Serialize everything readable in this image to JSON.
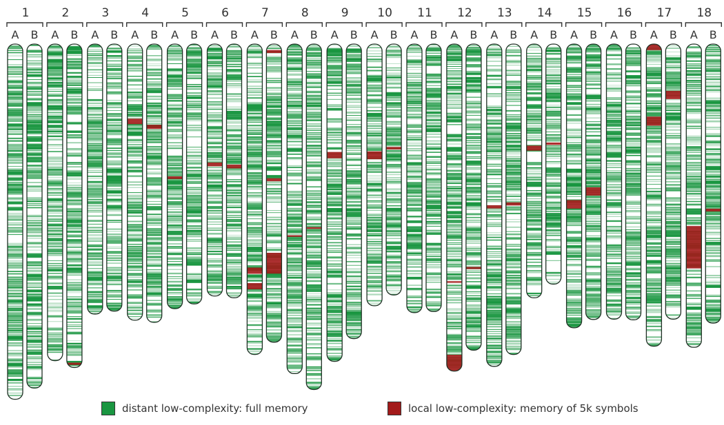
{
  "pairs": [
    {
      "number": "1",
      "labels": [
        "A",
        "B"
      ],
      "lengths": [
        0.984,
        0.953
      ]
    },
    {
      "number": "2",
      "labels": [
        "A",
        "B"
      ],
      "lengths": [
        0.877,
        0.896
      ]
    },
    {
      "number": "3",
      "labels": [
        "A",
        "B"
      ],
      "lengths": [
        0.748,
        0.74
      ]
    },
    {
      "number": "4",
      "labels": [
        "A",
        "B"
      ],
      "lengths": [
        0.765,
        0.771
      ]
    },
    {
      "number": "5",
      "labels": [
        "A",
        "B"
      ],
      "lengths": [
        0.733,
        0.72
      ]
    },
    {
      "number": "6",
      "labels": [
        "A",
        "B"
      ],
      "lengths": [
        0.698,
        0.703
      ]
    },
    {
      "number": "7",
      "labels": [
        "A",
        "B"
      ],
      "lengths": [
        0.86,
        0.826
      ]
    },
    {
      "number": "8",
      "labels": [
        "A",
        "B"
      ],
      "lengths": [
        0.913,
        0.957
      ]
    },
    {
      "number": "9",
      "labels": [
        "A",
        "B"
      ],
      "lengths": [
        0.879,
        0.816
      ]
    },
    {
      "number": "10",
      "labels": [
        "A",
        "B"
      ],
      "lengths": [
        0.725,
        0.695
      ]
    },
    {
      "number": "11",
      "labels": [
        "A",
        "B"
      ],
      "lengths": [
        0.744,
        0.741
      ]
    },
    {
      "number": "12",
      "labels": [
        "A",
        "B"
      ],
      "lengths": [
        0.906,
        0.848
      ]
    },
    {
      "number": "13",
      "labels": [
        "A",
        "B"
      ],
      "lengths": [
        0.893,
        0.86
      ]
    },
    {
      "number": "14",
      "labels": [
        "A",
        "B"
      ],
      "lengths": [
        0.703,
        0.665
      ]
    },
    {
      "number": "15",
      "labels": [
        "A",
        "B"
      ],
      "lengths": [
        0.786,
        0.763
      ]
    },
    {
      "number": "16",
      "labels": [
        "A",
        "B"
      ],
      "lengths": [
        0.762,
        0.764
      ]
    },
    {
      "number": "17",
      "labels": [
        "A",
        "B"
      ],
      "lengths": [
        0.837,
        0.762
      ]
    },
    {
      "number": "18",
      "labels": [
        "A",
        "B"
      ],
      "lengths": [
        0.84,
        0.773
      ]
    }
  ],
  "legend": [
    {
      "label": "distant low-complexity: full memory",
      "color": "#1a9641"
    },
    {
      "label": "local low-complexity: memory of 5k symbols",
      "color": "#a31a1a"
    }
  ],
  "colors": {
    "outline": "#1f2f24",
    "green": "#1a9641",
    "red": "#a31a1a",
    "background": "#ffffff"
  }
}
